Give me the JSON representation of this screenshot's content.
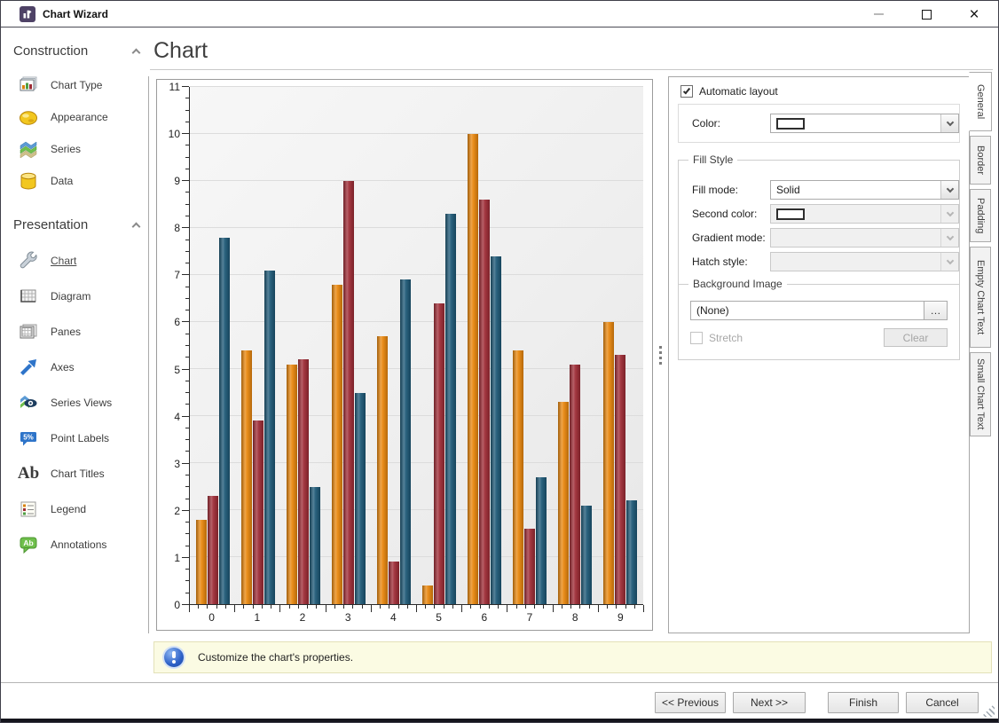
{
  "window": {
    "title": "Chart Wizard"
  },
  "sidebar": {
    "sections": [
      {
        "label": "Construction",
        "items": [
          {
            "label": "Chart Type",
            "icon": "chart-type-icon"
          },
          {
            "label": "Appearance",
            "icon": "palette-icon"
          },
          {
            "label": "Series",
            "icon": "series-layers-icon"
          },
          {
            "label": "Data",
            "icon": "database-icon"
          }
        ]
      },
      {
        "label": "Presentation",
        "items": [
          {
            "label": "Chart",
            "icon": "wrench-icon",
            "selected": true
          },
          {
            "label": "Diagram",
            "icon": "diagram-grid-icon"
          },
          {
            "label": "Panes",
            "icon": "panes-icon"
          },
          {
            "label": "Axes",
            "icon": "axes-arrow-icon"
          },
          {
            "label": "Series Views",
            "icon": "series-views-eye-icon"
          },
          {
            "label": "Point Labels",
            "icon": "point-labels-icon",
            "icon_text": "5%"
          },
          {
            "label": "Chart Titles",
            "icon": "chart-titles-icon",
            "icon_text": "Ab"
          },
          {
            "label": "Legend",
            "icon": "legend-icon"
          },
          {
            "label": "Annotations",
            "icon": "annotations-icon",
            "icon_text": "Ab"
          }
        ]
      }
    ]
  },
  "main": {
    "heading": "Chart"
  },
  "options": {
    "automatic_layout": {
      "label": "Automatic layout",
      "checked": true
    },
    "color_label": "Color:",
    "fill_style": {
      "title": "Fill Style",
      "fill_mode_label": "Fill mode:",
      "fill_mode_value": "Solid",
      "second_color_label": "Second color:",
      "gradient_mode_label": "Gradient mode:",
      "hatch_style_label": "Hatch style:"
    },
    "background_image": {
      "title": "Background Image",
      "value": "(None)",
      "browse_label": "…",
      "stretch_label": "Stretch",
      "clear_label": "Clear"
    }
  },
  "side_tabs": [
    "General",
    "Border",
    "Padding",
    "Empty Chart Text",
    "Small Chart Text"
  ],
  "info_bar": {
    "text": "Customize the chart's properties."
  },
  "footer": {
    "previous_label": "<< Previous",
    "next_label": "Next >>",
    "finish_label": "Finish",
    "cancel_label": "Cancel"
  },
  "icons": {
    "close": "×"
  },
  "chart_data": {
    "type": "bar",
    "title": "",
    "categories": [
      "0",
      "1",
      "2",
      "3",
      "4",
      "5",
      "6",
      "7",
      "8",
      "9"
    ],
    "series": [
      {
        "color": "#E8860D",
        "values": [
          1.8,
          5.4,
          5.1,
          6.8,
          5.7,
          0.4,
          10,
          5.4,
          4.3,
          6
        ]
      },
      {
        "color": "#9E2B35",
        "values": [
          2.3,
          3.9,
          5.2,
          9,
          0.9,
          6.4,
          8.6,
          1.6,
          5.1,
          5.3
        ]
      },
      {
        "color": "#1D5876",
        "values": [
          7.8,
          7.1,
          2.5,
          4.5,
          6.9,
          8.3,
          7.4,
          2.7,
          2.1,
          2.2
        ]
      }
    ],
    "xlabel": "",
    "ylabel": "",
    "ylim": [
      0,
      11
    ],
    "y_tick_step": 1,
    "grid": true,
    "legend": "none"
  }
}
